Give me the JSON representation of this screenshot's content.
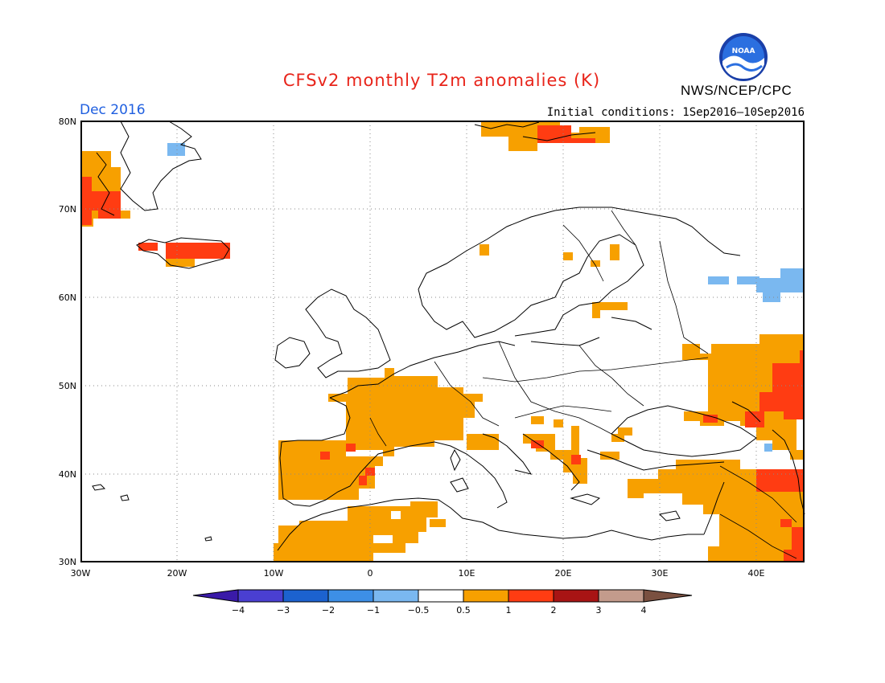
{
  "title": "CFSv2 monthly T2m anomalies (K)",
  "month": "Dec 2016",
  "initial_conditions": "Initial conditions: 1Sep2016–10Sep2016",
  "agency": "NWS/NCEP/CPC",
  "logo_text": "NOAA",
  "map": {
    "region": {
      "lon": [
        -30,
        45
      ],
      "lat": [
        30,
        80
      ]
    },
    "lat_labels": [
      "80N",
      "70N",
      "60N",
      "50N",
      "40N",
      "30N"
    ],
    "lon_labels": [
      "30W",
      "20W",
      "10W",
      "0",
      "10E",
      "20E",
      "30E",
      "40E"
    ],
    "grid": "dotted"
  },
  "colorbar": {
    "ticks": [
      "−4",
      "−3",
      "−2",
      "−1",
      "−0.5",
      "0.5",
      "1",
      "2",
      "3",
      "4"
    ],
    "colors": [
      "#3a1aa8",
      "#4a3fd1",
      "#1c62cf",
      "#3d8fe6",
      "#7ab8f0",
      "#ffffff",
      "#f7a000",
      "#ff3c12",
      "#a81414",
      "#c39b8c",
      "#7a5040"
    ]
  },
  "anomaly_colors": {
    "warm_0.5_1": "#f7a000",
    "warm_1_2": "#ff3c12",
    "cool_-1_-0.5": "#7ab8f0"
  }
}
